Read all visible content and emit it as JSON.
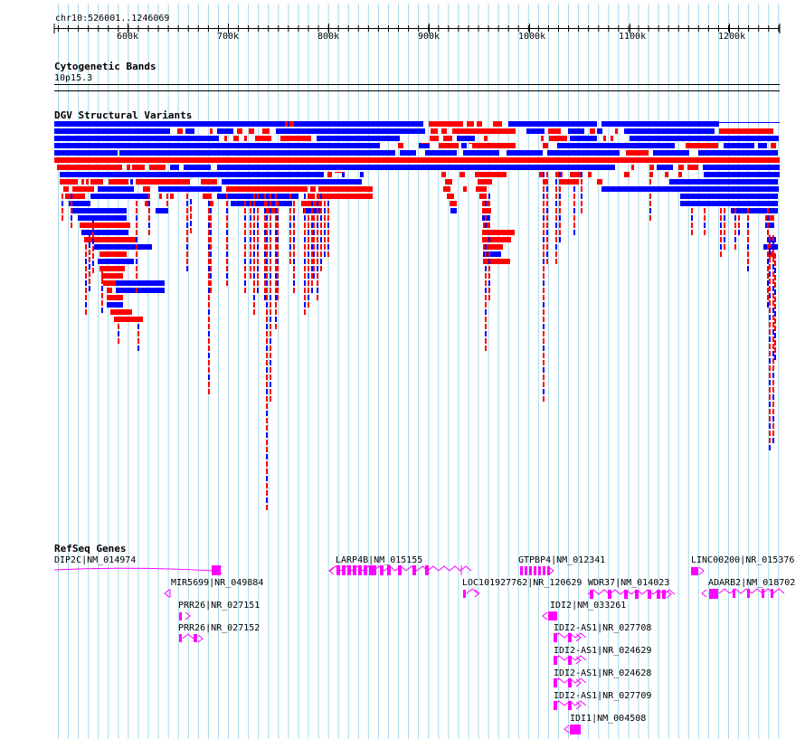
{
  "location": "chr10:526001..1246069",
  "ruler": {
    "ticks": [
      "600k",
      "700k",
      "800k",
      "900k",
      "1000k",
      "1100k",
      "1200k"
    ]
  },
  "tracks": {
    "cytoband": {
      "title": "Cytogenetic Bands",
      "band": "10p15.3"
    },
    "dgv": {
      "title": "DGV Structural Variants"
    },
    "refseq": {
      "title": "RefSeq Genes"
    }
  },
  "genes": [
    {
      "label": "DIP2C|NM_014974"
    },
    {
      "label": "MIR5699|NR_049884"
    },
    {
      "label": "PRR26|NR_027151"
    },
    {
      "label": "PRR26|NR_027152"
    },
    {
      "label": "LARP4B|NM_015155"
    },
    {
      "label": "LOC101927762|NR_120629"
    },
    {
      "label": "GTPBP4|NM_012341"
    },
    {
      "label": "WDR37|NM_014023"
    },
    {
      "label": "IDI2|NM_033261"
    },
    {
      "label": "IDI2-AS1|NR_027708"
    },
    {
      "label": "IDI2-AS1|NR_024629"
    },
    {
      "label": "IDI2-AS1|NR_024628"
    },
    {
      "label": "IDI2-AS1|NR_027709"
    },
    {
      "label": "IDI1|NM_004508"
    },
    {
      "label": "LINC00200|NR_015376"
    },
    {
      "label": "ADARB2|NM_018702"
    }
  ],
  "colors": {
    "gain": "#ff0000",
    "loss": "#0000ff",
    "gene": "#ff00ff",
    "grid": "#a8d8ea",
    "complex": "#8b2500"
  }
}
